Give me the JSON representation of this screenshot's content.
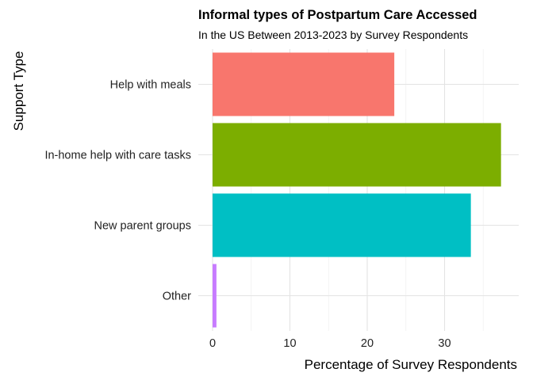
{
  "chart_data": {
    "type": "bar",
    "orientation": "horizontal",
    "title": "Informal types of Postpartum Care Accessed",
    "subtitle": "In the US Between 2013-2023 by Survey Respondents",
    "xlabel": "Percentage of Survey Respondents",
    "ylabel": "Support Type",
    "categories": [
      "Help with meals",
      "In-home help with care tasks",
      "New parent groups",
      "Other"
    ],
    "values": [
      23.5,
      37.3,
      33.4,
      0.5
    ],
    "colors": [
      "#F8766D",
      "#7CAE00",
      "#00BFC4",
      "#C77CFF"
    ],
    "xlim": [
      0,
      39
    ],
    "xticks": [
      0,
      10,
      20,
      30
    ],
    "grid": true,
    "legend": "none"
  }
}
